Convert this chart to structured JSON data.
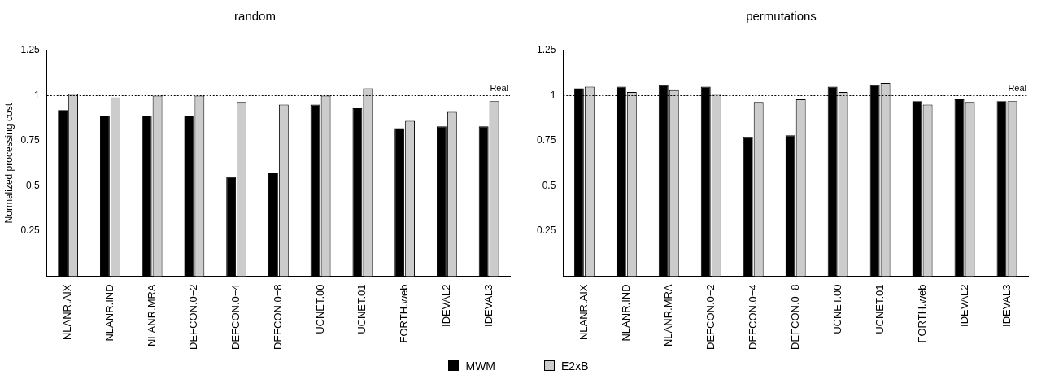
{
  "chart_data": [
    {
      "type": "bar",
      "title": "random",
      "ylabel": "Normalized processing cost",
      "categories": [
        "NLANR.AIX",
        "NLANR.IND",
        "NLANR.MRA",
        "DEFCON.0−2",
        "DEFCON.0−4",
        "DEFCON.0−8",
        "UCNET.00",
        "UCNET.01",
        "FORTH.web",
        "IDEVAL2",
        "IDEVAL3"
      ],
      "series": [
        {
          "name": "MWM",
          "color": "#000000",
          "values": [
            0.92,
            0.89,
            0.89,
            0.89,
            0.55,
            0.57,
            0.95,
            0.93,
            0.82,
            0.83,
            0.83
          ]
        },
        {
          "name": "E2xB",
          "color": "#cccccc",
          "values": [
            1.01,
            0.99,
            1.0,
            1.0,
            0.96,
            0.95,
            1.0,
            1.04,
            0.86,
            0.91,
            0.97
          ]
        }
      ],
      "ylim": [
        0,
        1.25
      ],
      "yticks": [
        0.25,
        0.5,
        0.75,
        1,
        1.25
      ],
      "grid": false,
      "legend": "bottom",
      "ref_lines": [
        {
          "axis": "y",
          "value": 1,
          "label": "Real",
          "line_style": "dotted",
          "color": "#000000"
        }
      ]
    },
    {
      "type": "bar",
      "title": "permutations",
      "categories": [
        "NLANR.AIX",
        "NLANR.IND",
        "NLANR.MRA",
        "DEFCON.0−2",
        "DEFCON.0−4",
        "DEFCON.0−8",
        "UCNET.00",
        "UCNET.01",
        "FORTH.web",
        "IDEVAL2",
        "IDEVAL3"
      ],
      "series": [
        {
          "color": "#000000",
          "values": [
            1.04,
            1.05,
            1.06,
            1.05,
            0.77,
            0.78,
            1.05,
            1.06,
            0.97,
            0.98,
            0.97
          ]
        },
        {
          "color": "#cccccc",
          "values": [
            1.05,
            1.02,
            1.03,
            1.01,
            0.96,
            0.98,
            1.02,
            1.07,
            0.95,
            0.96,
            0.97
          ]
        }
      ],
      "ylim": [
        0,
        1.25
      ],
      "yticks": [
        0.25,
        0.5,
        0.75,
        1,
        1.25
      ],
      "grid": false,
      "ref_lines": [
        {
          "axis": "y",
          "value": 1,
          "label": "Real",
          "line_style": "dotted",
          "color": "#000000"
        }
      ]
    }
  ]
}
